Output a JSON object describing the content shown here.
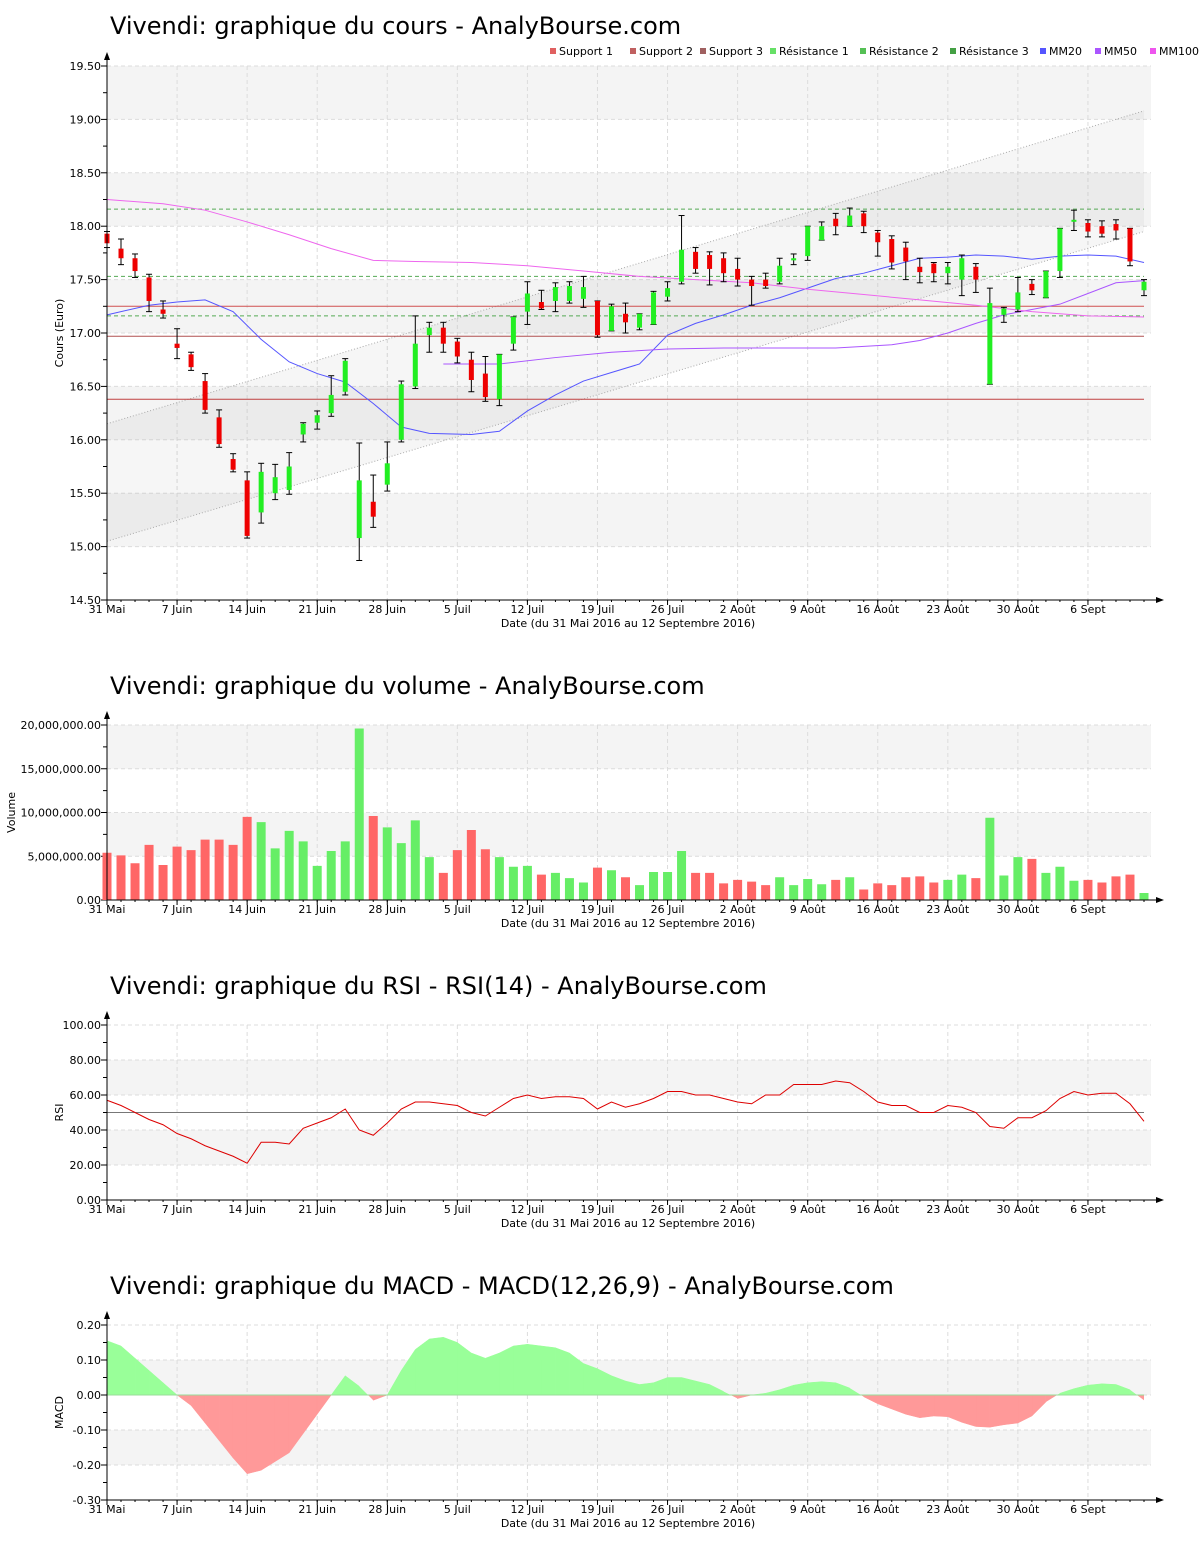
{
  "chart_data": [
    {
      "type": "candlestick",
      "title": "Vivendi: graphique du cours - AnalyBourse.com",
      "xlabel": "Date (du 31 Mai 2016 au 12 Septembre 2016)",
      "ylabel": "Cours (Euro)",
      "ylim": [
        14.5,
        19.5
      ],
      "yticks": [
        "14.50",
        "15.00",
        "15.50",
        "16.00",
        "16.50",
        "17.00",
        "17.50",
        "18.00",
        "18.50",
        "19.00",
        "19.50"
      ],
      "x_ticks": [
        {
          "label": "31 Mai",
          "i": 0
        },
        {
          "label": "7 Juin",
          "i": 5
        },
        {
          "label": "14 Juin",
          "i": 10
        },
        {
          "label": "21 Juin",
          "i": 15
        },
        {
          "label": "28 Juin",
          "i": 20
        },
        {
          "label": "5 Juil",
          "i": 25
        },
        {
          "label": "12 Juil",
          "i": 30
        },
        {
          "label": "19 Juil",
          "i": 35
        },
        {
          "label": "26 Juil",
          "i": 40
        },
        {
          "label": "2 Août",
          "i": 45
        },
        {
          "label": "9 Août",
          "i": 50
        },
        {
          "label": "16 Août",
          "i": 55
        },
        {
          "label": "23 Août",
          "i": 60
        },
        {
          "label": "30 Août",
          "i": 65
        },
        {
          "label": "6 Sept",
          "i": 70
        }
      ],
      "legend": {
        "placement": "top-right",
        "entries": [
          {
            "label": "Support 1",
            "color": "#e06060"
          },
          {
            "label": "Support 2",
            "color": "#c06060"
          },
          {
            "label": "Support 3",
            "color": "#a06060"
          },
          {
            "label": "Résistance 1",
            "color": "#66e066"
          },
          {
            "label": "Résistance 2",
            "color": "#55c055"
          },
          {
            "label": "Résistance 3",
            "color": "#44a044"
          },
          {
            "label": "MM20",
            "color": "#5555ff"
          },
          {
            "label": "MM50",
            "color": "#aa55ff"
          },
          {
            "label": "MM100",
            "color": "#ee55ee"
          }
        ]
      },
      "levels": {
        "support": [
          17.25,
          16.97,
          16.38
        ],
        "resistance": [
          17.53,
          17.16,
          18.16
        ]
      },
      "channel": {
        "upper": [
          [
            0,
            16.15
          ],
          [
            74,
            19.08
          ]
        ],
        "lower": [
          [
            0,
            15.05
          ],
          [
            74,
            17.95
          ]
        ]
      },
      "candles": [
        [
          17.93,
          17.84,
          17.8,
          17.95
        ],
        [
          17.79,
          17.7,
          17.64,
          17.88
        ],
        [
          17.7,
          17.58,
          17.52,
          17.74
        ],
        [
          17.52,
          17.3,
          17.2,
          17.55
        ],
        [
          17.22,
          17.18,
          17.14,
          17.3
        ],
        [
          16.9,
          16.86,
          16.76,
          17.04
        ],
        [
          16.8,
          16.68,
          16.65,
          16.82
        ],
        [
          16.55,
          16.28,
          16.25,
          16.62
        ],
        [
          16.21,
          15.96,
          15.93,
          16.28
        ],
        [
          15.82,
          15.72,
          15.7,
          15.87
        ],
        [
          15.62,
          15.1,
          15.08,
          15.7
        ],
        [
          15.32,
          15.7,
          15.22,
          15.78
        ],
        [
          15.5,
          15.65,
          15.44,
          15.77
        ],
        [
          15.53,
          15.75,
          15.49,
          15.88
        ],
        [
          16.05,
          16.15,
          15.98,
          16.16
        ],
        [
          16.16,
          16.23,
          16.1,
          16.27
        ],
        [
          16.25,
          16.42,
          16.22,
          16.6
        ],
        [
          16.45,
          16.74,
          16.42,
          16.76
        ],
        [
          15.08,
          15.62,
          14.87,
          15.97
        ],
        [
          15.42,
          15.28,
          15.18,
          15.67
        ],
        [
          15.58,
          15.78,
          15.52,
          15.98
        ],
        [
          16.0,
          16.52,
          15.98,
          16.55
        ],
        [
          16.5,
          16.9,
          16.48,
          17.16
        ],
        [
          16.98,
          17.05,
          16.82,
          17.1
        ],
        [
          17.05,
          16.9,
          16.82,
          17.1
        ],
        [
          16.92,
          16.78,
          16.72,
          16.95
        ],
        [
          16.75,
          16.56,
          16.45,
          16.82
        ],
        [
          16.62,
          16.4,
          16.36,
          16.78
        ],
        [
          16.38,
          16.8,
          16.32,
          16.8
        ],
        [
          16.9,
          17.15,
          16.84,
          17.15
        ],
        [
          17.2,
          17.37,
          17.08,
          17.48
        ],
        [
          17.29,
          17.23,
          17.22,
          17.4
        ],
        [
          17.3,
          17.43,
          17.2,
          17.47
        ],
        [
          17.3,
          17.44,
          17.28,
          17.48
        ],
        [
          17.32,
          17.43,
          17.24,
          17.53
        ],
        [
          17.3,
          16.98,
          16.96,
          17.3
        ],
        [
          17.02,
          17.25,
          17.02,
          17.27
        ],
        [
          17.18,
          17.1,
          17.0,
          17.28
        ],
        [
          17.05,
          17.18,
          17.03,
          17.18
        ],
        [
          17.08,
          17.38,
          17.08,
          17.39
        ],
        [
          17.34,
          17.42,
          17.3,
          17.48
        ],
        [
          17.48,
          17.78,
          17.46,
          18.1
        ],
        [
          17.76,
          17.6,
          17.56,
          17.8
        ],
        [
          17.73,
          17.6,
          17.45,
          17.76
        ],
        [
          17.7,
          17.56,
          17.48,
          17.75
        ],
        [
          17.6,
          17.5,
          17.44,
          17.7
        ],
        [
          17.5,
          17.44,
          17.26,
          17.53
        ],
        [
          17.5,
          17.44,
          17.42,
          17.56
        ],
        [
          17.48,
          17.63,
          17.46,
          17.7
        ],
        [
          17.68,
          17.7,
          17.64,
          17.74
        ],
        [
          17.72,
          18.0,
          17.68,
          18.0
        ],
        [
          17.87,
          18.0,
          17.87,
          18.04
        ],
        [
          18.07,
          18.0,
          17.92,
          18.12
        ],
        [
          18.0,
          18.1,
          18.0,
          18.17
        ],
        [
          18.12,
          18.0,
          17.94,
          18.14
        ],
        [
          17.94,
          17.85,
          17.72,
          17.96
        ],
        [
          17.88,
          17.66,
          17.6,
          17.91
        ],
        [
          17.8,
          17.67,
          17.5,
          17.85
        ],
        [
          17.62,
          17.57,
          17.47,
          17.7
        ],
        [
          17.65,
          17.56,
          17.48,
          17.66
        ],
        [
          17.56,
          17.62,
          17.46,
          17.66
        ],
        [
          17.5,
          17.7,
          17.35,
          17.73
        ],
        [
          17.62,
          17.5,
          17.38,
          17.65
        ],
        [
          16.52,
          17.28,
          16.52,
          17.42
        ],
        [
          17.17,
          17.23,
          17.1,
          17.24
        ],
        [
          17.22,
          17.38,
          17.2,
          17.52
        ],
        [
          17.46,
          17.4,
          17.36,
          17.5
        ],
        [
          17.33,
          17.58,
          17.33,
          17.58
        ],
        [
          17.58,
          17.98,
          17.52,
          17.98
        ],
        [
          18.05,
          18.06,
          17.96,
          18.15
        ],
        [
          18.03,
          17.95,
          17.9,
          18.06
        ],
        [
          18.0,
          17.93,
          17.9,
          18.05
        ],
        [
          18.02,
          17.96,
          17.88,
          18.06
        ],
        [
          17.98,
          17.67,
          17.63,
          17.98
        ],
        [
          17.4,
          17.48,
          17.35,
          17.5
        ]
      ],
      "series": [
        {
          "name": "MM20",
          "points": [
            [
              0,
              17.17
            ],
            [
              3,
              17.26
            ],
            [
              5,
              17.29
            ],
            [
              7,
              17.31
            ],
            [
              9,
              17.2
            ],
            [
              11,
              16.94
            ],
            [
              13,
              16.73
            ],
            [
              15,
              16.62
            ],
            [
              17,
              16.54
            ],
            [
              19,
              16.34
            ],
            [
              21,
              16.12
            ],
            [
              23,
              16.06
            ],
            [
              26,
              16.05
            ],
            [
              28,
              16.08
            ],
            [
              30,
              16.27
            ],
            [
              32,
              16.42
            ],
            [
              34,
              16.55
            ],
            [
              36,
              16.63
            ],
            [
              38,
              16.71
            ],
            [
              40,
              16.98
            ],
            [
              42,
              17.09
            ],
            [
              44,
              17.17
            ],
            [
              46,
              17.26
            ],
            [
              48,
              17.33
            ],
            [
              50,
              17.42
            ],
            [
              52,
              17.51
            ],
            [
              54,
              17.56
            ],
            [
              56,
              17.63
            ],
            [
              58,
              17.7
            ],
            [
              60,
              17.71
            ],
            [
              62,
              17.73
            ],
            [
              64,
              17.72
            ],
            [
              66,
              17.69
            ],
            [
              68,
              17.72
            ],
            [
              70,
              17.73
            ],
            [
              72,
              17.72
            ],
            [
              74,
              17.66
            ]
          ]
        },
        {
          "name": "MM50",
          "points": [
            [
              24,
              16.71
            ],
            [
              28,
              16.71
            ],
            [
              32,
              16.77
            ],
            [
              36,
              16.82
            ],
            [
              40,
              16.85
            ],
            [
              44,
              16.86
            ],
            [
              48,
              16.86
            ],
            [
              52,
              16.86
            ],
            [
              56,
              16.89
            ],
            [
              58,
              16.93
            ],
            [
              60,
              17.0
            ],
            [
              62,
              17.09
            ],
            [
              64,
              17.17
            ],
            [
              66,
              17.22
            ],
            [
              68,
              17.27
            ],
            [
              70,
              17.37
            ],
            [
              72,
              17.47
            ],
            [
              74,
              17.49
            ]
          ]
        },
        {
          "name": "MM100",
          "points": [
            [
              0,
              18.25
            ],
            [
              4,
              18.21
            ],
            [
              7,
              18.15
            ],
            [
              10,
              18.04
            ],
            [
              13,
              17.92
            ],
            [
              16,
              17.79
            ],
            [
              19,
              17.68
            ],
            [
              22,
              17.67
            ],
            [
              26,
              17.66
            ],
            [
              30,
              17.63
            ],
            [
              34,
              17.58
            ],
            [
              38,
              17.53
            ],
            [
              42,
              17.5
            ],
            [
              46,
              17.47
            ],
            [
              50,
              17.41
            ],
            [
              54,
              17.36
            ],
            [
              58,
              17.31
            ],
            [
              62,
              17.26
            ],
            [
              66,
              17.2
            ],
            [
              70,
              17.16
            ],
            [
              74,
              17.15
            ]
          ]
        }
      ]
    },
    {
      "type": "bar",
      "title": "Vivendi: graphique du volume - AnalyBourse.com",
      "xlabel": "Date (du 31 Mai 2016 au 12 Septembre 2016)",
      "ylabel": "Volume",
      "ylim": [
        0,
        20000000
      ],
      "yticks": [
        "0.00",
        "5,000,000.00",
        "10,000,000.00",
        "15,000,000.00",
        "20,000,000.00"
      ],
      "values": [
        5400000,
        5100000,
        4200000,
        6300000,
        4000000,
        6100000,
        5700000,
        6900000,
        6900000,
        6300000,
        9500000,
        8900000,
        5900000,
        7900000,
        6700000,
        3900000,
        5600000,
        6700000,
        19600000,
        9600000,
        8300000,
        6500000,
        9100000,
        4900000,
        3100000,
        5700000,
        8000000,
        5800000,
        4900000,
        3800000,
        3900000,
        2900000,
        3100000,
        2500000,
        2000000,
        3700000,
        3400000,
        2600000,
        1700000,
        3200000,
        3200000,
        5600000,
        3100000,
        3100000,
        1900000,
        2300000,
        2100000,
        1700000,
        2600000,
        1700000,
        2400000,
        1800000,
        2300000,
        2600000,
        1200000,
        1900000,
        1700000,
        2600000,
        2700000,
        2000000,
        2300000,
        2900000,
        2500000,
        9400000,
        2800000,
        4900000,
        4700000,
        3100000,
        3800000,
        2200000,
        2300000,
        2000000,
        2700000,
        2900000,
        800000
      ],
      "colors_up_down": {
        "up": "#66ee66",
        "down": "#ff6666"
      }
    },
    {
      "type": "line",
      "title": "Vivendi: graphique du RSI - RSI(14) - AnalyBourse.com",
      "xlabel": "Date (du 31 Mai 2016 au 12 Septembre 2016)",
      "ylabel": "RSI",
      "ylim": [
        0,
        100
      ],
      "yticks": [
        "0.00",
        "20.00",
        "40.00",
        "60.00",
        "80.00",
        "100.00"
      ],
      "reference": 50,
      "values": [
        57,
        54,
        50,
        46,
        43,
        38,
        35,
        31,
        28,
        25,
        21,
        33,
        33,
        32,
        41,
        44,
        47,
        52,
        40,
        37,
        44,
        52,
        56,
        56,
        55,
        54,
        50,
        48,
        53,
        58,
        60,
        58,
        59,
        59,
        58,
        52,
        56,
        53,
        55,
        58,
        62,
        62,
        60,
        60,
        58,
        56,
        55,
        60,
        60,
        66,
        66,
        66,
        68,
        67,
        62,
        56,
        54,
        54,
        50,
        50,
        54,
        53,
        50,
        42,
        41,
        47,
        47,
        51,
        58,
        62,
        60,
        61,
        61,
        55,
        45
      ],
      "color": "#dd0000"
    },
    {
      "type": "area",
      "title": "Vivendi: graphique du MACD - MACD(12,26,9) - AnalyBourse.com",
      "xlabel": "Date (du 31 Mai 2016 au 12 Septembre 2016)",
      "ylabel": "MACD",
      "ylim": [
        -0.3,
        0.2
      ],
      "yticks": [
        "-0.30",
        "-0.20",
        "-0.10",
        "0.00",
        "0.10",
        "0.20"
      ],
      "values": [
        0.155,
        0.14,
        0.105,
        0.07,
        0.035,
        0.0,
        -0.03,
        -0.08,
        -0.13,
        -0.18,
        -0.225,
        -0.215,
        -0.19,
        -0.165,
        -0.11,
        -0.055,
        0.0,
        0.055,
        0.025,
        -0.015,
        0.0,
        0.07,
        0.13,
        0.16,
        0.165,
        0.15,
        0.12,
        0.105,
        0.12,
        0.14,
        0.145,
        0.14,
        0.135,
        0.12,
        0.09,
        0.075,
        0.055,
        0.04,
        0.03,
        0.035,
        0.05,
        0.05,
        0.04,
        0.03,
        0.01,
        -0.01,
        0.0,
        0.005,
        0.015,
        0.028,
        0.035,
        0.038,
        0.035,
        0.02,
        -0.005,
        -0.025,
        -0.04,
        -0.055,
        -0.065,
        -0.06,
        -0.062,
        -0.078,
        -0.09,
        -0.092,
        -0.085,
        -0.08,
        -0.06,
        -0.02,
        0.005,
        0.018,
        0.028,
        0.032,
        0.03,
        0.015,
        -0.015
      ],
      "colors": {
        "positive": "#99ff99",
        "negative": "#ff9999"
      }
    }
  ]
}
